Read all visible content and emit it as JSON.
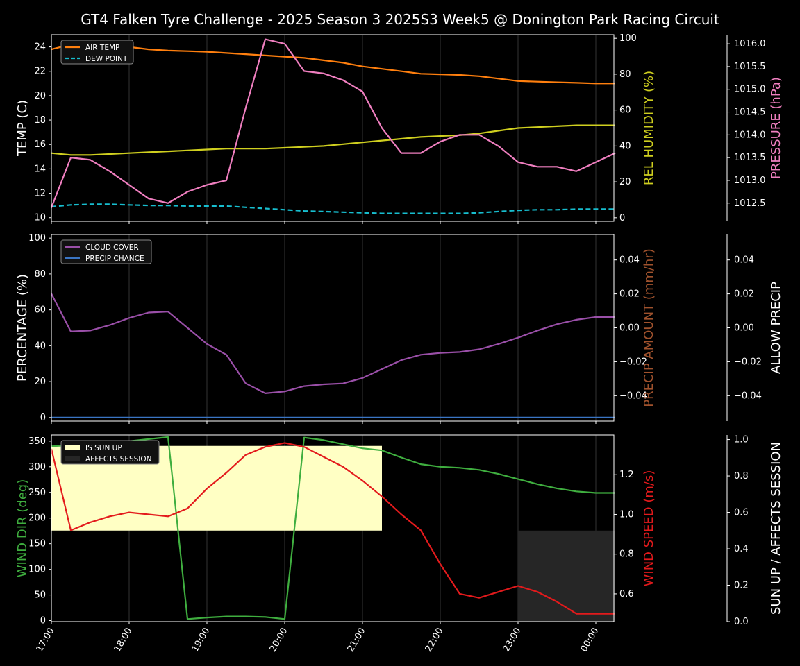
{
  "title": "GT4 Falken Tyre Challenge - 2025 Season 3 2025S3 Week5 @ Donington Park Racing Circuit",
  "colors": {
    "background": "#000000",
    "axes": "#ffffff",
    "air_temp": "#ff7f0e",
    "dew_point": "#17becf",
    "humidity": "#cfcf1f",
    "pressure": "#f07fc0",
    "cloud": "#9a4fa8",
    "precip_chance": "#3a75c4",
    "wind_dir": "#3fae3f",
    "wind_speed": "#e31a1c",
    "sun": "#ffffc4",
    "session": "#262626"
  },
  "chart_data": [
    {
      "type": "line",
      "x": [
        "17:00",
        "17:15",
        "17:30",
        "17:45",
        "18:00",
        "18:15",
        "18:30",
        "18:45",
        "19:00",
        "19:15",
        "19:30",
        "19:45",
        "20:00",
        "20:15",
        "20:30",
        "20:45",
        "21:00",
        "21:15",
        "21:30",
        "21:45",
        "22:00",
        "22:15",
        "22:30",
        "22:45",
        "23:00",
        "23:15",
        "23:30",
        "23:45",
        "00:00",
        "00:15"
      ],
      "xticks": [
        "17:00",
        "18:00",
        "19:00",
        "20:00",
        "21:00",
        "22:00",
        "23:00",
        "00:00"
      ],
      "ylabel_left": "TEMP (C)",
      "ylabel_right": "REL HUMIDITY (%)",
      "ylabel_far_right": "PRESSURE (hPa)",
      "yticks_left": [
        "10",
        "12",
        "14",
        "16",
        "18",
        "20",
        "22",
        "24"
      ],
      "yticks_right": [
        "0",
        "20",
        "40",
        "60",
        "80",
        "100"
      ],
      "yticks_far_right": [
        "1012.5",
        "1013.0",
        "1013.5",
        "1014.0",
        "1014.5",
        "1015.0",
        "1015.5",
        "1016.0"
      ],
      "ylim_left": [
        9.7,
        25.0
      ],
      "ylim_right": [
        -2,
        102
      ],
      "ylim_far_right": [
        1012.1,
        1016.2
      ],
      "legend": [
        "AIR TEMP",
        "DEW POINT"
      ],
      "legend_position": "top-left",
      "series": [
        {
          "name": "AIR TEMP",
          "axis": "left",
          "values": [
            23.8,
            24.2,
            24.2,
            24.1,
            24.0,
            23.8,
            23.7,
            23.65,
            23.6,
            23.5,
            23.4,
            23.3,
            23.2,
            23.1,
            22.9,
            22.7,
            22.4,
            22.2,
            22.0,
            21.8,
            21.75,
            21.7,
            21.6,
            21.4,
            21.2,
            21.15,
            21.1,
            21.05,
            21.0,
            21.0
          ]
        },
        {
          "name": "DEW POINT",
          "axis": "left",
          "values": [
            10.9,
            11.05,
            11.1,
            11.1,
            11.05,
            11.0,
            11.0,
            10.95,
            10.95,
            10.95,
            10.85,
            10.75,
            10.65,
            10.55,
            10.5,
            10.45,
            10.4,
            10.35,
            10.35,
            10.35,
            10.35,
            10.35,
            10.4,
            10.5,
            10.6,
            10.65,
            10.65,
            10.7,
            10.7,
            10.7
          ]
        },
        {
          "name": "REL HUMIDITY",
          "axis": "right",
          "values": [
            36,
            35,
            35,
            35.5,
            36,
            36.5,
            37,
            37.5,
            38,
            38.5,
            38.5,
            38.5,
            39,
            39.5,
            40,
            41,
            42,
            43,
            44,
            45,
            45.5,
            46,
            47,
            48.5,
            50,
            50.5,
            51,
            51.5,
            51.5,
            51.5
          ]
        },
        {
          "name": "PRESSURE",
          "axis": "far_right",
          "values": [
            1012.4,
            1013.5,
            1013.45,
            1013.2,
            1012.9,
            1012.6,
            1012.5,
            1012.75,
            1012.9,
            1013.0,
            1014.6,
            1016.1,
            1016.0,
            1015.4,
            1015.35,
            1015.2,
            1014.95,
            1014.15,
            1013.6,
            1013.6,
            1013.85,
            1014.0,
            1014.0,
            1013.75,
            1013.4,
            1013.3,
            1013.3,
            1013.2,
            1013.4,
            1013.6
          ]
        }
      ]
    },
    {
      "type": "line",
      "ylabel_left": "PERCENTAGE (%)",
      "ylabel_right": "PRECIP AMOUNT (mm/hr)",
      "ylabel_far_right": "ALLOW PRECIP",
      "yticks_left": [
        "0",
        "20",
        "40",
        "60",
        "80",
        "100"
      ],
      "yticks_right": [
        "−0.04",
        "−0.02",
        "0.00",
        "0.02",
        "0.04"
      ],
      "yticks_far_right": [
        "−0.04",
        "−0.02",
        "0.00",
        "0.02",
        "0.04"
      ],
      "ylim_left": [
        -2,
        102
      ],
      "ylim_right": [
        -0.055,
        0.055
      ],
      "ylim_far_right": [
        -0.055,
        0.055
      ],
      "legend": [
        "CLOUD COVER",
        "PRECIP CHANCE"
      ],
      "legend_position": "top-left",
      "series": [
        {
          "name": "CLOUD COVER",
          "axis": "left",
          "values": [
            69,
            48,
            48.5,
            51.5,
            55.5,
            58.5,
            59,
            50,
            41,
            35,
            19,
            13.5,
            14.5,
            17.5,
            18.5,
            19,
            22,
            27,
            32,
            35,
            36,
            36.5,
            38,
            41,
            44.5,
            48.5,
            52,
            54.5,
            56,
            56
          ]
        },
        {
          "name": "PRECIP CHANCE",
          "axis": "left",
          "values": [
            0,
            0,
            0,
            0,
            0,
            0,
            0,
            0,
            0,
            0,
            0,
            0,
            0,
            0,
            0,
            0,
            0,
            0,
            0,
            0,
            0,
            0,
            0,
            0,
            0,
            0,
            0,
            0,
            0,
            0
          ]
        }
      ]
    },
    {
      "type": "line",
      "ylabel_left": "WIND DIR (deg)",
      "ylabel_right": "WIND SPEED (m/s)",
      "ylabel_far_right": "SUN UP / AFFECTS SESSION",
      "yticks_left": [
        "0",
        "50",
        "100",
        "150",
        "200",
        "250",
        "300",
        "350"
      ],
      "yticks_right": [
        "0.6",
        "0.8",
        "1.0",
        "1.2"
      ],
      "yticks_far_right": [
        "0.0",
        "0.2",
        "0.4",
        "0.6",
        "0.8",
        "1.0"
      ],
      "ylim_left": [
        -2,
        362
      ],
      "ylim_right": [
        0.46,
        1.4
      ],
      "ylim_far_right": [
        0,
        1.025
      ],
      "legend": [
        "IS SUN UP",
        "AFFECTS SESSION"
      ],
      "legend_position": "top-left",
      "series": [
        {
          "name": "WIND DIR",
          "axis": "left",
          "values": [
            340,
            342,
            345,
            347,
            350,
            354,
            358,
            3,
            6,
            8,
            8,
            7,
            3,
            357,
            352,
            344,
            336,
            332,
            318,
            305,
            300,
            298,
            294,
            286,
            276,
            266,
            258,
            252,
            249,
            249
          ]
        },
        {
          "name": "WIND SPEED",
          "axis": "right",
          "values": [
            1.33,
            0.92,
            0.96,
            0.99,
            1.01,
            1.0,
            0.99,
            1.03,
            1.13,
            1.21,
            1.3,
            1.34,
            1.36,
            1.34,
            1.29,
            1.24,
            1.17,
            1.09,
            1.0,
            0.92,
            0.75,
            0.6,
            0.58,
            0.61,
            0.64,
            0.61,
            0.56,
            0.5,
            0.5,
            0.5
          ]
        }
      ],
      "shading": [
        {
          "name": "IS SUN UP",
          "from": "17:00",
          "to": "21:15",
          "level": 1.0
        },
        {
          "name": "AFFECTS SESSION",
          "from": "23:00",
          "to": "00:15",
          "level": 1.0
        }
      ]
    }
  ]
}
